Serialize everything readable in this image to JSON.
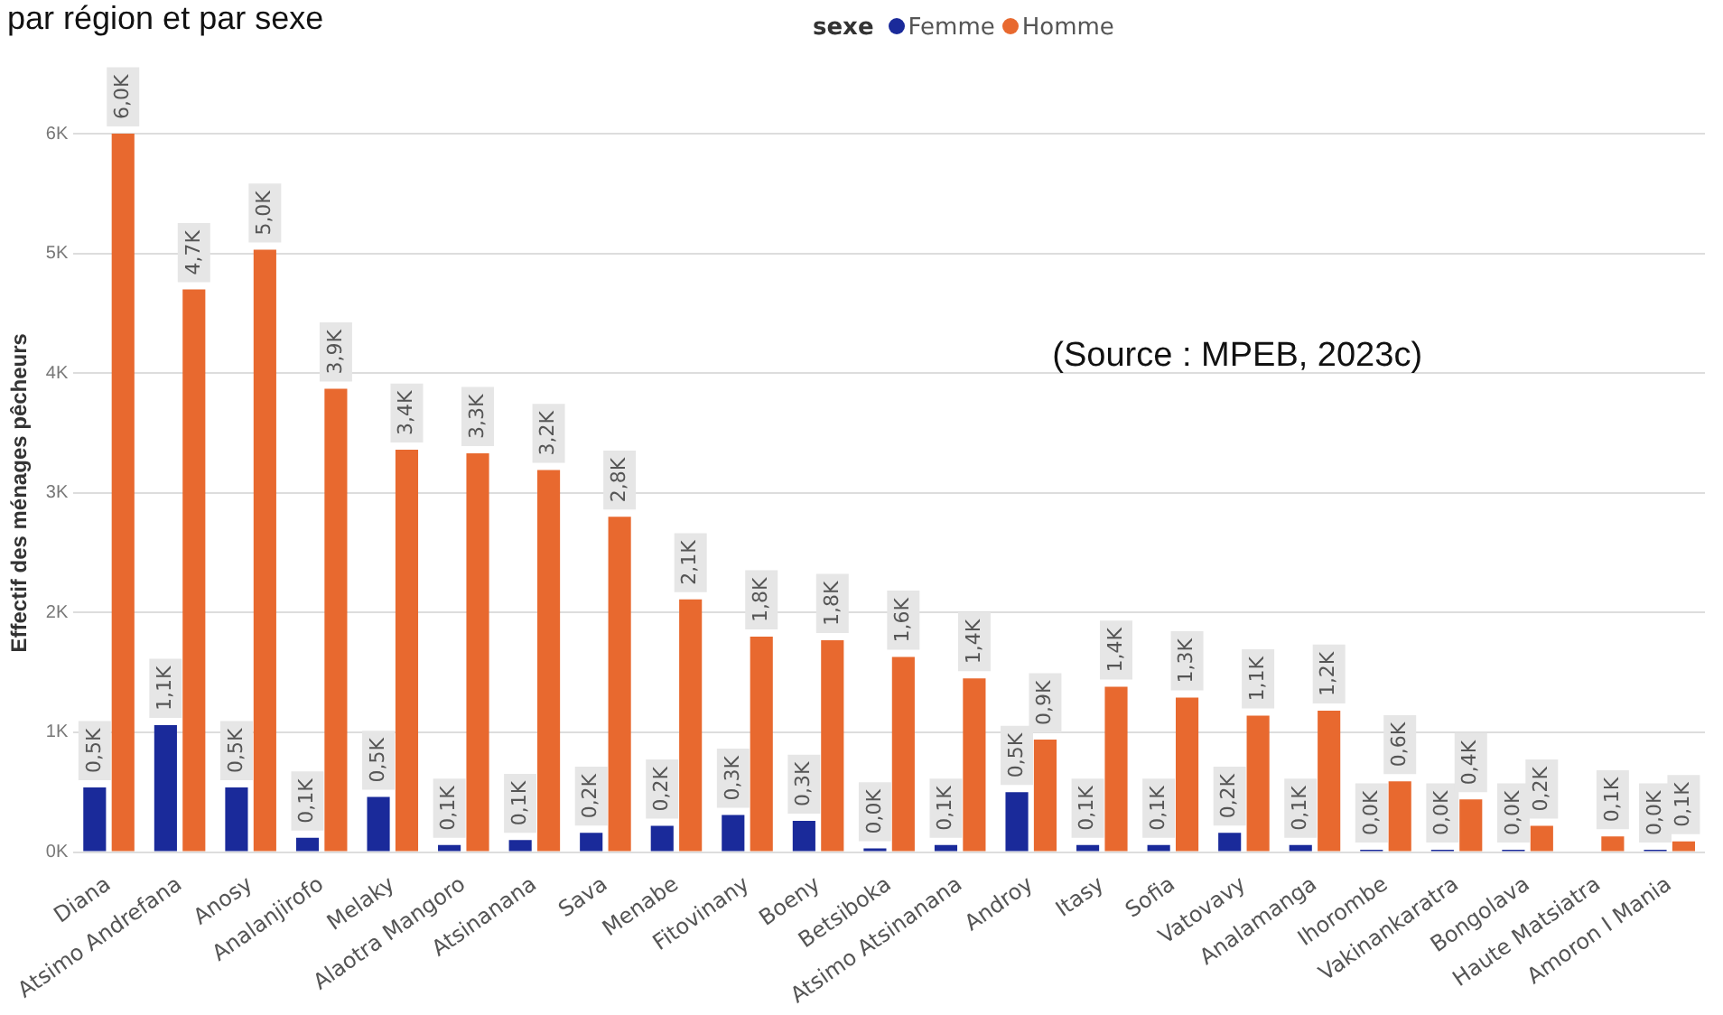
{
  "chart_data": {
    "type": "bar",
    "title": "par région et par sexe",
    "legend_title": "sexe",
    "ylabel": "Effectif des ménages pêcheurs",
    "categories": [
      "Diana",
      "Atsimo Andrefana",
      "Anosy",
      "Analanjirofo",
      "Melaky",
      "Alaotra Mangoro",
      "Atsinanana",
      "Sava",
      "Menabe",
      "Fitovinany",
      "Boeny",
      "Betsiboka",
      "Atsimo Atsinanana",
      "Androy",
      "Itasy",
      "Sofia",
      "Vatovavy",
      "Analamanga",
      "Ihorombe",
      "Vakinankaratra",
      "Bongolava",
      "Haute Matsiatra",
      "Amoron I Mania"
    ],
    "series": [
      {
        "name": "Femme",
        "color": "#1a2a9a",
        "values": [
          540,
          1060,
          540,
          120,
          460,
          60,
          100,
          160,
          220,
          310,
          260,
          30,
          60,
          500,
          60,
          60,
          160,
          60,
          20,
          20,
          20,
          null,
          20
        ],
        "value_labels": [
          "0,5K",
          "1,1K",
          "0,5K",
          "0,1K",
          "0,5K",
          "0,1K",
          "0,1K",
          "0,2K",
          "0,2K",
          "0,3K",
          "0,3K",
          "0,0K",
          "0,1K",
          "0,5K",
          "0,1K",
          "0,1K",
          "0,2K",
          "0,1K",
          "0,0K",
          "0,0K",
          "0,0K",
          null,
          "0,0K"
        ]
      },
      {
        "name": "Homme",
        "color": "#e8692f",
        "values": [
          6000,
          4700,
          5030,
          3870,
          3360,
          3330,
          3190,
          2800,
          2110,
          1800,
          1770,
          1630,
          1450,
          940,
          1380,
          1290,
          1140,
          1180,
          590,
          440,
          220,
          130,
          90
        ],
        "value_labels": [
          "6,0K",
          "4,7K",
          "5,0K",
          "3,9K",
          "3,4K",
          "3,3K",
          "3,2K",
          "2,8K",
          "2,1K",
          "1,8K",
          "1,8K",
          "1,6K",
          "1,4K",
          "0,9K",
          "1,4K",
          "1,3K",
          "1,1K",
          "1,2K",
          "0,6K",
          "0,4K",
          "0,2K",
          "0,1K",
          "0,1K"
        ]
      }
    ],
    "ylim": [
      0,
      6000
    ],
    "yticks": [
      {
        "value": 0,
        "label": "0K"
      },
      {
        "value": 1000,
        "label": "1K"
      },
      {
        "value": 2000,
        "label": "2K"
      },
      {
        "value": 3000,
        "label": "3K"
      },
      {
        "value": 4000,
        "label": "4K"
      },
      {
        "value": 5000,
        "label": "5K"
      },
      {
        "value": 6000,
        "label": "6K"
      }
    ],
    "grid": "y",
    "legend": "top",
    "annotations": [
      "(Source : MPEB, 2023c)"
    ]
  }
}
